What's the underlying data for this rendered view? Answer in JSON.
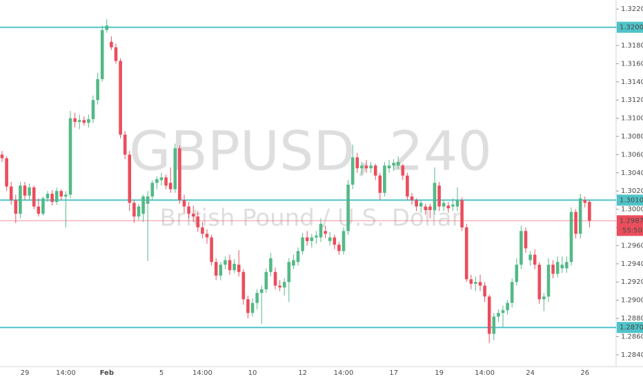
{
  "chart_data": {
    "type": "candlestick",
    "title": "GBPUSD, 240",
    "subtitle": "British Pound / U.S. Dollar",
    "up_color": "#53b987",
    "down_color": "#eb4d5c",
    "level_color": "#4fc3c8",
    "last_color": "#eb4d5c",
    "grid": false,
    "ylim": [
      1.2827,
      1.323
    ],
    "yticks": [
      {
        "value": 1.284,
        "label": "1.28400"
      },
      {
        "value": 1.286,
        "label": "1.28600"
      },
      {
        "value": 1.288,
        "label": "1.28800"
      },
      {
        "value": 1.29,
        "label": "1.29000"
      },
      {
        "value": 1.292,
        "label": "1.29200"
      },
      {
        "value": 1.294,
        "label": "1.29400"
      },
      {
        "value": 1.296,
        "label": "1.29600"
      },
      {
        "value": 1.298,
        "label": "1.29800"
      },
      {
        "value": 1.3,
        "label": "1.30000"
      },
      {
        "value": 1.302,
        "label": "1.30200"
      },
      {
        "value": 1.304,
        "label": "1.30400"
      },
      {
        "value": 1.306,
        "label": "1.30600"
      },
      {
        "value": 1.308,
        "label": "1.30800"
      },
      {
        "value": 1.31,
        "label": "1.31000"
      },
      {
        "value": 1.312,
        "label": "1.31200"
      },
      {
        "value": 1.314,
        "label": "1.31400"
      },
      {
        "value": 1.316,
        "label": "1.31600"
      },
      {
        "value": 1.318,
        "label": "1.31800"
      },
      {
        "value": 1.32,
        "label": "1.32000"
      },
      {
        "value": 1.322,
        "label": "1.32200"
      }
    ],
    "levels": [
      {
        "value": 1.32,
        "label": "1.32000"
      },
      {
        "value": 1.301,
        "label": "1.30100"
      },
      {
        "value": 1.287,
        "label": "1.28700"
      }
    ],
    "last_price": 1.29873,
    "countdown": "55:50",
    "categories": [
      null,
      null,
      null,
      null,
      null,
      "29",
      null,
      null,
      null,
      null,
      null,
      null,
      null,
      null,
      "14:00",
      null,
      null,
      null,
      null,
      null,
      null,
      null,
      null,
      "Feb",
      null,
      null,
      null,
      null,
      null,
      null,
      null,
      null,
      null,
      null,
      null,
      "5",
      null,
      null,
      null,
      null,
      null,
      null,
      null,
      null,
      "14:00",
      null,
      null,
      null,
      null,
      null,
      null,
      null,
      null,
      null,
      null,
      "10",
      null,
      null,
      null,
      null,
      null,
      null,
      null,
      null,
      null,
      null,
      "12",
      null,
      null,
      null,
      null,
      null,
      null,
      null,
      null,
      "14:00",
      null,
      null,
      null,
      null,
      null,
      null,
      null,
      null,
      null,
      null,
      "17",
      null,
      null,
      null,
      null,
      null,
      null,
      null,
      null,
      null,
      "19",
      null,
      null,
      null,
      null,
      null,
      null,
      null,
      null,
      null,
      "14:00",
      null,
      null,
      null,
      null,
      null,
      null,
      null,
      null,
      null,
      "24",
      null,
      null,
      null,
      null,
      null,
      null,
      null,
      null,
      null,
      null,
      null,
      "26",
      null
    ],
    "ohlc": [
      [
        1.306,
        1.3064,
        1.3052,
        1.3056
      ],
      [
        1.3056,
        1.3058,
        1.302,
        1.3025
      ],
      [
        1.3025,
        1.303,
        1.3005,
        1.301
      ],
      [
        1.301,
        1.3016,
        1.2985,
        1.2995
      ],
      [
        1.2995,
        1.303,
        1.299,
        1.3026
      ],
      [
        1.3026,
        1.303,
        1.301,
        1.3015
      ],
      [
        1.3015,
        1.3028,
        1.301,
        1.3024
      ],
      [
        1.3024,
        1.3026,
        1.3,
        1.3003
      ],
      [
        1.3003,
        1.3012,
        1.2992,
        1.2995
      ],
      [
        1.2995,
        1.3014,
        1.2993,
        1.3012
      ],
      [
        1.3012,
        1.302,
        1.3008,
        1.3017
      ],
      [
        1.3017,
        1.3021,
        1.3004,
        1.3008
      ],
      [
        1.3008,
        1.3024,
        1.3005,
        1.302
      ],
      [
        1.302,
        1.3022,
        1.301,
        1.3014
      ],
      [
        1.3014,
        1.302,
        1.298,
        1.3016
      ],
      [
        1.3016,
        1.3108,
        1.3012,
        1.31
      ],
      [
        1.31,
        1.3106,
        1.309,
        1.3096
      ],
      [
        1.3096,
        1.3104,
        1.3088,
        1.3098
      ],
      [
        1.3098,
        1.3102,
        1.3092,
        1.3095
      ],
      [
        1.3095,
        1.3104,
        1.309,
        1.3099
      ],
      [
        1.3099,
        1.3125,
        1.3095,
        1.312
      ],
      [
        1.312,
        1.315,
        1.3115,
        1.3143
      ],
      [
        1.3143,
        1.3202,
        1.314,
        1.3197
      ],
      [
        1.3197,
        1.3209,
        1.3194,
        1.3202
      ],
      [
        1.3184,
        1.319,
        1.3175,
        1.3178
      ],
      [
        1.3178,
        1.3182,
        1.316,
        1.3163
      ],
      [
        1.3163,
        1.3166,
        1.3078,
        1.3082
      ],
      [
        1.3082,
        1.3086,
        1.3055,
        1.306
      ],
      [
        1.306,
        1.3064,
        1.2998,
        1.3007
      ],
      [
        1.3007,
        1.301,
        1.2985,
        1.2992
      ],
      [
        1.2992,
        1.3006,
        1.2988,
        1.3003
      ],
      [
        1.2995,
        1.3016,
        1.2986,
        1.3014
      ],
      [
        1.3006,
        1.302,
        1.2943,
        1.3014
      ],
      [
        1.3014,
        1.3032,
        1.301,
        1.3029
      ],
      [
        1.3029,
        1.3036,
        1.3022,
        1.3033
      ],
      [
        1.3032,
        1.304,
        1.3026,
        1.3035
      ],
      [
        1.3035,
        1.3038,
        1.3022,
        1.3026
      ],
      [
        1.3029,
        1.3046,
        1.3018,
        1.3022
      ],
      [
        1.3022,
        1.3072,
        1.3018,
        1.3067
      ],
      [
        1.3067,
        1.307,
        1.3006,
        1.301
      ],
      [
        1.301,
        1.3016,
        1.2996,
        1.3003
      ],
      [
        1.3003,
        1.3008,
        1.299,
        1.2995
      ],
      [
        1.2995,
        1.3004,
        1.2986,
        1.2992
      ],
      [
        1.2992,
        1.2998,
        1.2975,
        1.298
      ],
      [
        1.298,
        1.2986,
        1.2968,
        1.2973
      ],
      [
        1.2973,
        1.2978,
        1.2962,
        1.2969
      ],
      [
        1.2969,
        1.2972,
        1.2938,
        1.2942
      ],
      [
        1.2942,
        1.2946,
        1.2922,
        1.2927
      ],
      [
        1.2927,
        1.2942,
        1.2922,
        1.2939
      ],
      [
        1.2939,
        1.2948,
        1.2934,
        1.2944
      ],
      [
        1.2944,
        1.295,
        1.2928,
        1.2933
      ],
      [
        1.2933,
        1.2945,
        1.293,
        1.294
      ],
      [
        1.2939,
        1.2955,
        1.2926,
        1.2931
      ],
      [
        1.2931,
        1.2934,
        1.2895,
        1.2901
      ],
      [
        1.2901,
        1.2905,
        1.288,
        1.2886
      ],
      [
        1.2886,
        1.2902,
        1.2882,
        1.2897
      ],
      [
        1.2897,
        1.2912,
        1.289,
        1.2908
      ],
      [
        1.2908,
        1.2916,
        1.2874,
        1.2912
      ],
      [
        1.2912,
        1.2935,
        1.2908,
        1.2931
      ],
      [
        1.2931,
        1.2952,
        1.2926,
        1.2946
      ],
      [
        1.2931,
        1.2936,
        1.2912,
        1.2916
      ],
      [
        1.2916,
        1.2922,
        1.291,
        1.2914
      ],
      [
        1.2914,
        1.2924,
        1.2905,
        1.292
      ],
      [
        1.292,
        1.2946,
        1.2898,
        1.2942
      ],
      [
        1.2938,
        1.295,
        1.2934,
        1.2944
      ],
      [
        1.2942,
        1.2958,
        1.2938,
        1.2954
      ],
      [
        1.2954,
        1.2974,
        1.295,
        1.2969
      ],
      [
        1.2969,
        1.2976,
        1.296,
        1.2965
      ],
      [
        1.2965,
        1.2973,
        1.2958,
        1.2969
      ],
      [
        1.2969,
        1.2976,
        1.2962,
        1.2971
      ],
      [
        1.2969,
        1.299,
        1.2964,
        1.2984
      ],
      [
        1.2976,
        1.2982,
        1.2968,
        1.2973
      ],
      [
        1.2965,
        1.2975,
        1.296,
        1.2969
      ],
      [
        1.2969,
        1.2972,
        1.2956,
        1.2961
      ],
      [
        1.2961,
        1.2964,
        1.295,
        1.2954
      ],
      [
        1.2954,
        1.298,
        1.295,
        1.2976
      ],
      [
        1.2976,
        1.3032,
        1.2972,
        1.3027
      ],
      [
        1.3027,
        1.3071,
        1.3022,
        1.3057
      ],
      [
        1.3057,
        1.3062,
        1.304,
        1.3045
      ],
      [
        1.3045,
        1.3052,
        1.3038,
        1.3048
      ],
      [
        1.3048,
        1.3054,
        1.304,
        1.3045
      ],
      [
        1.3045,
        1.3052,
        1.304,
        1.3048
      ],
      [
        1.3048,
        1.305,
        1.3032,
        1.3037
      ],
      [
        1.3037,
        1.304,
        1.301,
        1.3018
      ],
      [
        1.3018,
        1.3052,
        1.3014,
        1.3048
      ],
      [
        1.3045,
        1.3054,
        1.304,
        1.3048
      ],
      [
        1.3048,
        1.3055,
        1.3042,
        1.3051
      ],
      [
        1.3048,
        1.3058,
        1.3044,
        1.3052
      ],
      [
        1.3048,
        1.305,
        1.3032,
        1.3037
      ],
      [
        1.3037,
        1.304,
        1.301,
        1.3014
      ],
      [
        1.3014,
        1.3018,
        1.3005,
        1.301
      ],
      [
        1.301,
        1.3012,
        1.2998,
        1.3003
      ],
      [
        1.3003,
        1.301,
        1.2996,
        1.3007
      ],
      [
        1.3003,
        1.3006,
        1.2994,
        1.2999
      ],
      [
        1.3003,
        1.3006,
        1.299,
        1.2999
      ],
      [
        1.2999,
        1.3046,
        1.2994,
        1.3029
      ],
      [
        1.3026,
        1.303,
        1.2998,
        1.3003
      ],
      [
        1.3003,
        1.301,
        1.2998,
        1.3007
      ],
      [
        1.3004,
        1.3008,
        1.2996,
        1.3001
      ],
      [
        1.3003,
        1.3012,
        1.2998,
        1.3005
      ],
      [
        1.3003,
        1.3024,
        1.2998,
        1.301
      ],
      [
        1.301,
        1.3013,
        1.2976,
        1.298
      ],
      [
        1.298,
        1.2984,
        1.292,
        1.2923
      ],
      [
        1.2923,
        1.2928,
        1.2912,
        1.2918
      ],
      [
        1.2918,
        1.2926,
        1.291,
        1.292
      ],
      [
        1.292,
        1.2928,
        1.291,
        1.2916
      ],
      [
        1.2916,
        1.292,
        1.2898,
        1.2904
      ],
      [
        1.2904,
        1.2906,
        1.2853,
        1.2863
      ],
      [
        1.2863,
        1.2886,
        1.2856,
        1.2882
      ],
      [
        1.2882,
        1.289,
        1.2876,
        1.2886
      ],
      [
        1.2886,
        1.2894,
        1.287,
        1.2889
      ],
      [
        1.2889,
        1.29,
        1.2884,
        1.2897
      ],
      [
        1.2897,
        1.2924,
        1.2892,
        1.292
      ],
      [
        1.292,
        1.2946,
        1.2916,
        1.2939
      ],
      [
        1.2939,
        1.2982,
        1.2934,
        1.2976
      ],
      [
        1.2976,
        1.298,
        1.2952,
        1.2957
      ],
      [
        1.2944,
        1.2954,
        1.2938,
        1.295
      ],
      [
        1.295,
        1.2956,
        1.2934,
        1.2939
      ],
      [
        1.2939,
        1.2942,
        1.2896,
        1.2901
      ],
      [
        1.2901,
        1.2908,
        1.2888,
        1.2904
      ],
      [
        1.2904,
        1.2946,
        1.2898,
        1.2939
      ],
      [
        1.2939,
        1.2944,
        1.2924,
        1.2929
      ],
      [
        1.2929,
        1.2948,
        1.2925,
        1.2942
      ],
      [
        1.2935,
        1.2948,
        1.293,
        1.2939
      ],
      [
        1.2935,
        1.2948,
        1.293,
        1.2942
      ],
      [
        1.2942,
        1.3002,
        1.2938,
        1.2997
      ],
      [
        1.2997,
        1.3,
        1.2968,
        1.2973
      ],
      [
        1.2973,
        1.3017,
        1.2968,
        1.3012
      ],
      [
        1.301,
        1.3014,
        1.3002,
        1.3007
      ],
      [
        1.3008,
        1.301,
        1.298,
        1.29873
      ]
    ]
  }
}
